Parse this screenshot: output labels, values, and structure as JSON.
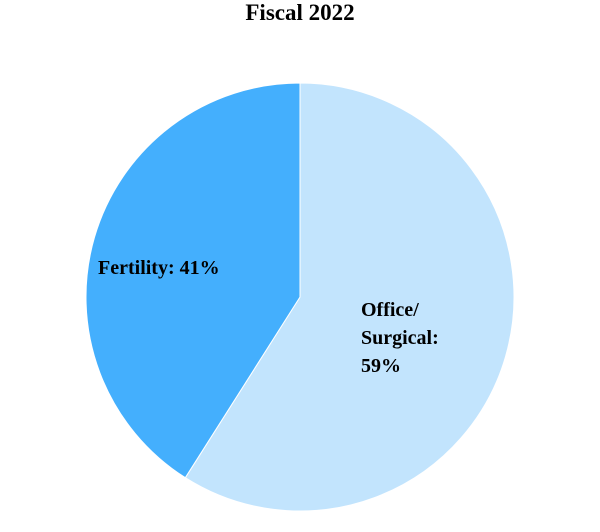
{
  "chart_data": {
    "type": "pie",
    "title": "Fiscal 2022",
    "slices": [
      {
        "name": "Office/ Surgical",
        "value": 59,
        "label_lines": [
          "Office/",
          "Surgical:",
          "59%"
        ],
        "color": "#c2e4fd"
      },
      {
        "name": "Fertility",
        "value": 41,
        "label_lines": [
          "Fertility: 41%"
        ],
        "color": "#44affd"
      }
    ],
    "start_angle_deg": 0,
    "direction": "clockwise",
    "legend": "none",
    "border_color": "#ffffff"
  }
}
